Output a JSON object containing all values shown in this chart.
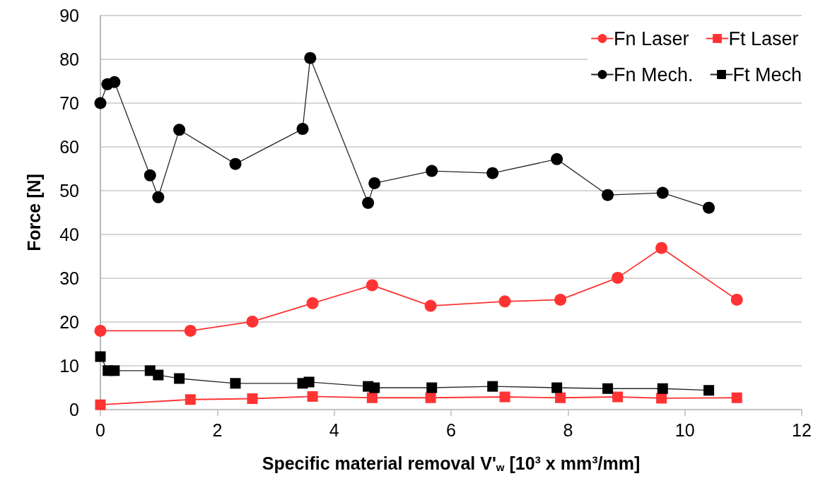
{
  "chart_data": {
    "type": "line",
    "xlabel": "Specific material removal V'$_{w}$ [10³ x mm³/mm]",
    "ylabel": "Force [N]",
    "xlim": [
      0,
      12
    ],
    "xticks": [
      0,
      2,
      4,
      6,
      8,
      10,
      12
    ],
    "ylim": [
      0,
      90
    ],
    "yticks": [
      0,
      10,
      20,
      30,
      40,
      50,
      60,
      70,
      80,
      90
    ],
    "grid": "y",
    "legend": "top right",
    "line_style": "solid",
    "series": [
      {
        "name": "Fn Laser",
        "color": "#ff3333",
        "marker": "circle",
        "x": [
          0,
          1.54,
          2.6,
          3.63,
          4.65,
          5.65,
          6.92,
          7.87,
          8.85,
          9.6,
          10.89
        ],
        "values": [
          18.0,
          18.0,
          20.1,
          24.3,
          28.4,
          23.7,
          24.7,
          25.1,
          30.1,
          36.9,
          25.1
        ]
      },
      {
        "name": "Ft Laser",
        "color": "#ff3333",
        "marker": "square",
        "x": [
          0,
          1.54,
          2.6,
          3.63,
          4.65,
          5.65,
          6.92,
          7.87,
          8.85,
          9.6,
          10.89
        ],
        "values": [
          1.1,
          2.3,
          2.5,
          3.0,
          2.7,
          2.7,
          2.9,
          2.7,
          2.9,
          2.6,
          2.7
        ]
      },
      {
        "name": "Fn Mech.",
        "color": "#000000",
        "marker": "circle",
        "x": [
          0,
          0.12,
          0.24,
          0.85,
          0.99,
          1.35,
          2.31,
          3.46,
          3.59,
          4.58,
          4.69,
          5.67,
          6.71,
          7.81,
          8.68,
          9.62,
          10.41
        ],
        "values": [
          70.0,
          74.3,
          74.8,
          53.5,
          48.5,
          63.9,
          56.1,
          64.1,
          80.3,
          47.2,
          51.7,
          54.5,
          54.0,
          57.2,
          49.0,
          49.5,
          46.1
        ]
      },
      {
        "name": "Ft Mech",
        "color": "#000000",
        "marker": "square",
        "x": [
          0,
          0.13,
          0.24,
          0.85,
          0.99,
          1.35,
          2.31,
          3.46,
          3.57,
          4.58,
          4.69,
          5.67,
          6.71,
          7.81,
          8.68,
          9.62,
          10.41
        ],
        "values": [
          12.1,
          8.9,
          8.9,
          8.9,
          7.9,
          7.1,
          6.0,
          6.0,
          6.3,
          5.3,
          5.0,
          5.0,
          5.3,
          5.0,
          4.8,
          4.8,
          4.4
        ]
      }
    ]
  }
}
